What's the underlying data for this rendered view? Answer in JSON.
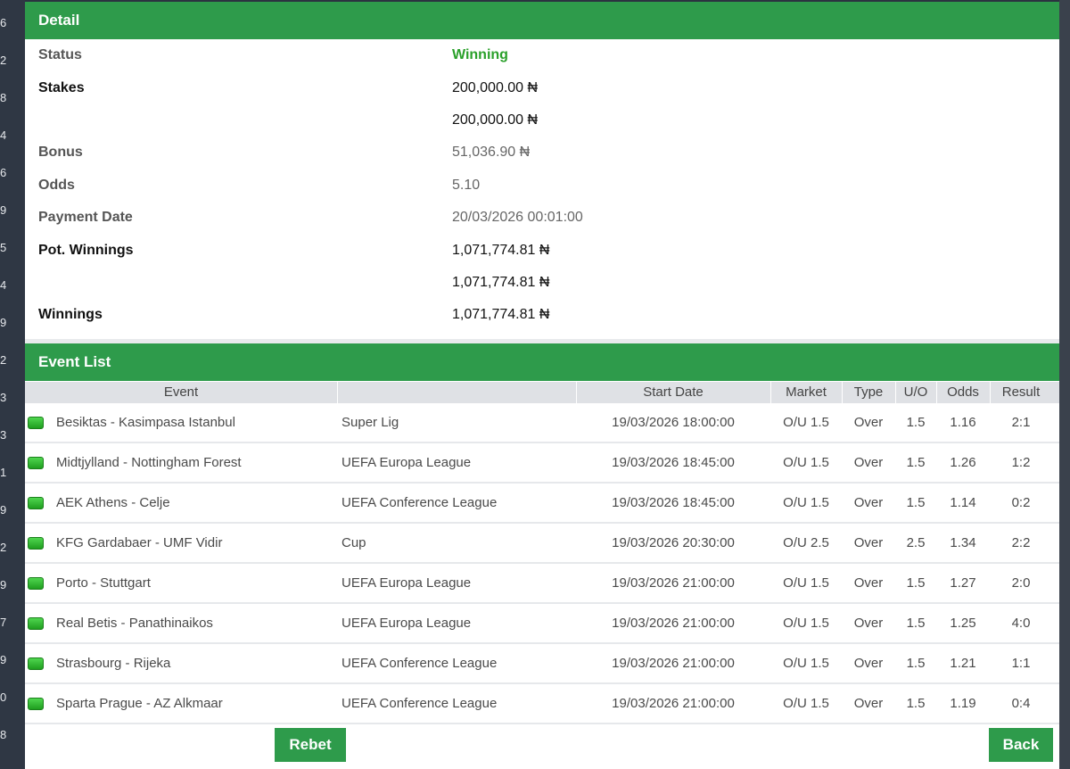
{
  "gutter_numbers": [
    "6",
    "2",
    "8",
    "4",
    "6",
    "9",
    "5",
    "4",
    "9",
    "2",
    "3",
    "3",
    "1",
    "9",
    "2",
    "9",
    "7",
    "9",
    "0",
    "8"
  ],
  "detail": {
    "title": "Detail",
    "rows": [
      {
        "label": "Status",
        "value": "Winning"
      },
      {
        "label": "Stakes",
        "value": "200,000.00 ₦"
      },
      {
        "label": "",
        "value": "200,000.00 ₦"
      },
      {
        "label": "Bonus",
        "value": "51,036.90 ₦"
      },
      {
        "label": "Odds",
        "value": "5.10"
      },
      {
        "label": "Payment Date",
        "value": "20/03/2026 00:01:00"
      },
      {
        "label": "Pot. Winnings",
        "value": "1,071,774.81 ₦"
      },
      {
        "label": "",
        "value": "1,071,774.81 ₦"
      },
      {
        "label": "Winnings",
        "value": "1,071,774.81 ₦"
      }
    ]
  },
  "event_list": {
    "title": "Event List",
    "columns": {
      "event": "Event",
      "start_date": "Start Date",
      "market": "Market",
      "type": "Type",
      "uo": "U/O",
      "odds": "Odds",
      "result": "Result"
    },
    "rows": [
      {
        "event": "Besiktas - Kasimpasa Istanbul",
        "league": "Super Lig",
        "start": "19/03/2026 18:00:00",
        "market": "O/U 1.5",
        "type": "Over",
        "uo": "1.5",
        "odds": "1.16",
        "result": "2:1"
      },
      {
        "event": "Midtjylland - Nottingham Forest",
        "league": "UEFA Europa League",
        "start": "19/03/2026 18:45:00",
        "market": "O/U 1.5",
        "type": "Over",
        "uo": "1.5",
        "odds": "1.26",
        "result": "1:2"
      },
      {
        "event": "AEK Athens - Celje",
        "league": "UEFA Conference League",
        "start": "19/03/2026 18:45:00",
        "market": "O/U 1.5",
        "type": "Over",
        "uo": "1.5",
        "odds": "1.14",
        "result": "0:2"
      },
      {
        "event": "KFG Gardabaer - UMF Vidir",
        "league": "Cup",
        "start": "19/03/2026 20:30:00",
        "market": "O/U 2.5",
        "type": "Over",
        "uo": "2.5",
        "odds": "1.34",
        "result": "2:2"
      },
      {
        "event": "Porto - Stuttgart",
        "league": "UEFA Europa League",
        "start": "19/03/2026 21:00:00",
        "market": "O/U 1.5",
        "type": "Over",
        "uo": "1.5",
        "odds": "1.27",
        "result": "2:0"
      },
      {
        "event": "Real Betis - Panathinaikos",
        "league": "UEFA Europa League",
        "start": "19/03/2026 21:00:00",
        "market": "O/U 1.5",
        "type": "Over",
        "uo": "1.5",
        "odds": "1.25",
        "result": "4:0"
      },
      {
        "event": "Strasbourg - Rijeka",
        "league": "UEFA Conference League",
        "start": "19/03/2026 21:00:00",
        "market": "O/U 1.5",
        "type": "Over",
        "uo": "1.5",
        "odds": "1.21",
        "result": "1:1"
      },
      {
        "event": "Sparta Prague - AZ Alkmaar",
        "league": "UEFA Conference League",
        "start": "19/03/2026 21:00:00",
        "market": "O/U 1.5",
        "type": "Over",
        "uo": "1.5",
        "odds": "1.19",
        "result": "0:4"
      }
    ]
  },
  "buttons": {
    "rebet": "Rebet",
    "back": "Back"
  },
  "colors": {
    "accent": "#2e9b4b",
    "winning": "#2aa02a"
  },
  "icons": {
    "row_status": "green-status-icon"
  }
}
